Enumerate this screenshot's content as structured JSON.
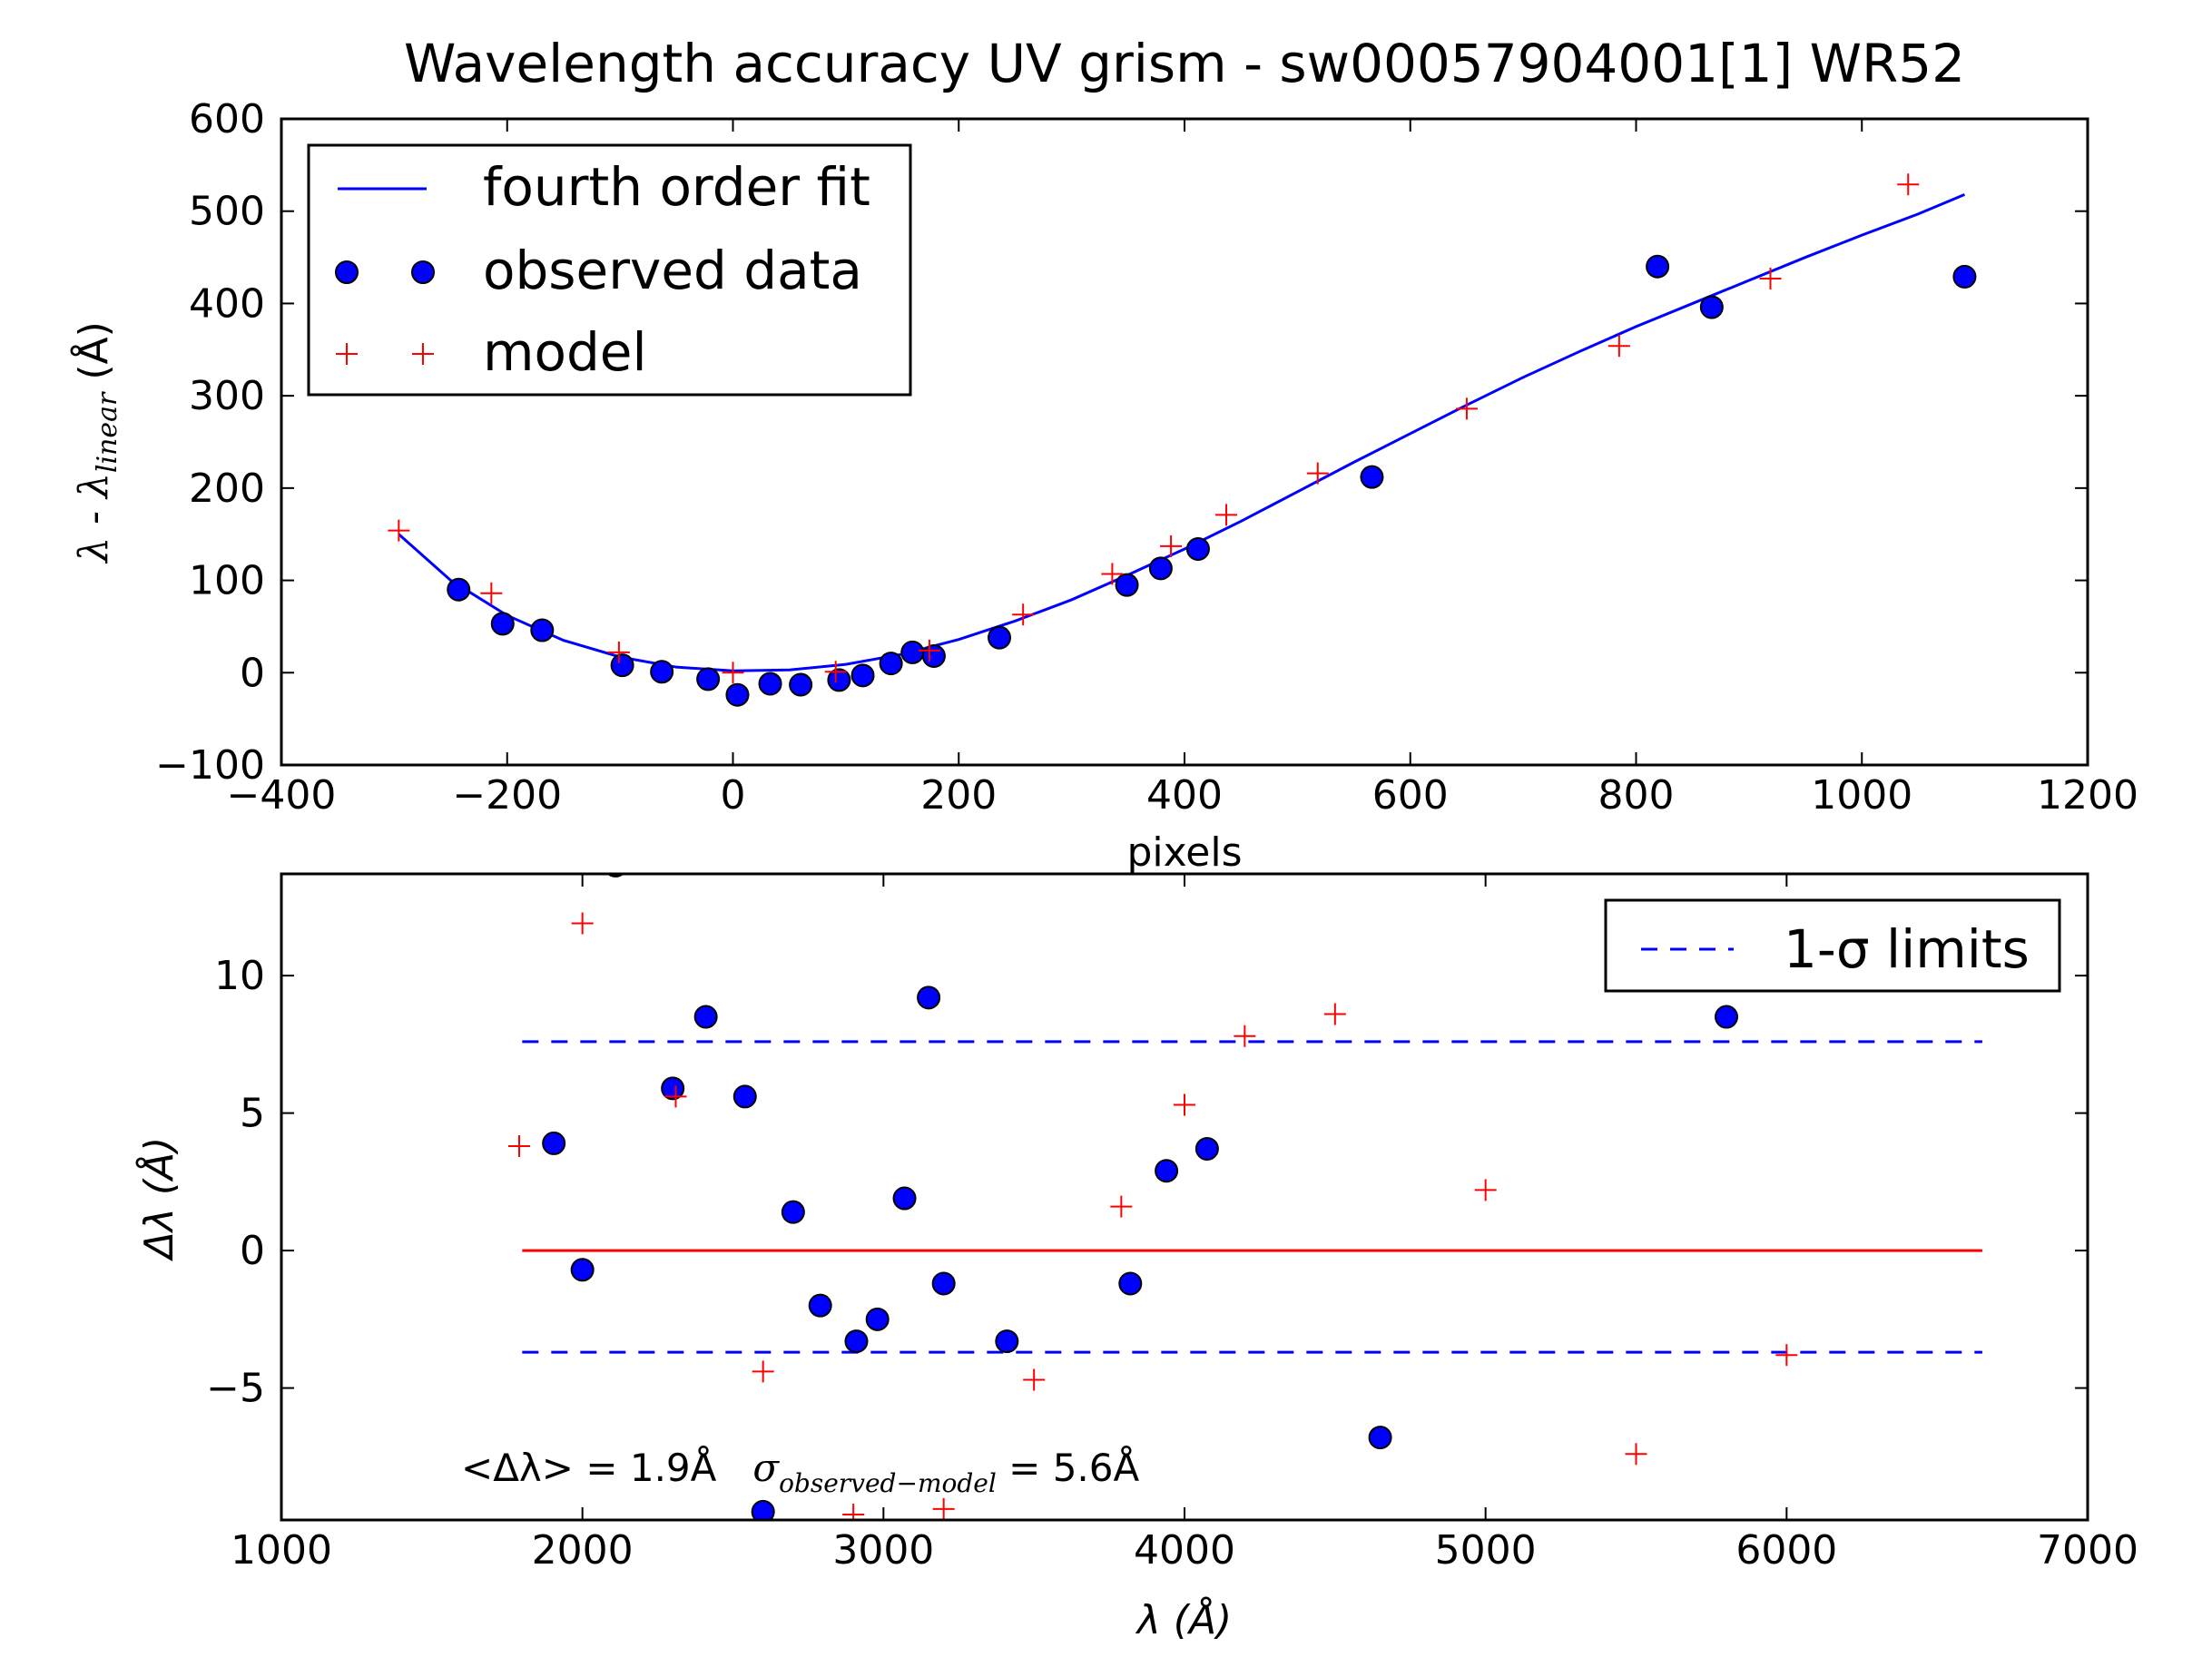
{
  "chart_data": [
    {
      "type": "scatter",
      "title": "Wavelength accuracy UV grism - sw00057904001[1] WR52",
      "xlabel": "pixels",
      "ylabel": {
        "prefix": "λ - λ",
        "subscript": "linear",
        "suffix": "  (Å)"
      },
      "xlim": [
        -400,
        1200
      ],
      "ylim": [
        -100,
        600
      ],
      "xticks": [
        -400,
        -200,
        0,
        200,
        400,
        600,
        800,
        1000,
        1200
      ],
      "yticks": [
        -100,
        0,
        100,
        200,
        300,
        400,
        500,
        600
      ],
      "xtick_labels": [
        "−400",
        "−200",
        "0",
        "200",
        "400",
        "600",
        "800",
        "1000",
        "1200"
      ],
      "ytick_labels": [
        "−100",
        "0",
        "100",
        "200",
        "300",
        "400",
        "500",
        "600"
      ],
      "grid": false,
      "legend_position": "top-left",
      "series": [
        {
          "name": "fourth order fit",
          "kind": "line",
          "color": "#0000ff",
          "x": [
            -296,
            -250,
            -200,
            -150,
            -100,
            -50,
            0,
            50,
            100,
            150,
            200,
            250,
            300,
            350,
            400,
            450,
            500,
            550,
            600,
            650,
            700,
            750,
            800,
            850,
            900,
            950,
            1000,
            1050,
            1091
          ],
          "y": [
            150,
            100,
            62,
            35,
            17,
            6,
            2,
            3,
            9,
            20,
            36,
            56,
            79,
            106,
            134,
            164,
            196,
            228,
            259,
            290,
            320,
            348,
            375,
            400,
            425,
            450,
            474,
            497,
            518
          ]
        },
        {
          "name": "observed data",
          "kind": "points",
          "marker": "circle",
          "color": "#0000ff",
          "x": [
            -243,
            -204,
            -169,
            -98,
            -63,
            -22,
            4,
            33,
            60,
            94,
            115,
            140,
            159,
            178,
            236,
            349,
            379,
            412,
            566,
            819,
            867,
            1091
          ],
          "y": [
            90,
            53,
            46,
            8,
            1,
            -7,
            -24,
            -12,
            -13,
            -8,
            -3,
            10,
            22,
            18,
            38,
            95,
            113,
            134,
            212,
            440,
            396,
            429
          ]
        },
        {
          "name": "model",
          "kind": "points",
          "marker": "plus",
          "color": "#ff0000",
          "x": [
            -296,
            -214,
            -101,
            0,
            91,
            174,
            257,
            336,
            388,
            437,
            518,
            650,
            785,
            919,
            1041
          ],
          "y": [
            154,
            86,
            22,
            0,
            1,
            24,
            63,
            107,
            137,
            171,
            216,
            286,
            354,
            427,
            529
          ]
        }
      ]
    },
    {
      "type": "scatter",
      "xlabel": "λ (Å)",
      "ylabel": "Δλ (Å)",
      "xlim": [
        1000,
        7000
      ],
      "ylim": [
        -9.8,
        13.7
      ],
      "xticks": [
        1000,
        2000,
        3000,
        4000,
        5000,
        6000,
        7000
      ],
      "yticks": [
        -5,
        0,
        5,
        10
      ],
      "xtick_labels": [
        "1000",
        "2000",
        "3000",
        "4000",
        "5000",
        "6000",
        "7000"
      ],
      "ytick_labels": [
        "−5",
        "0",
        "5",
        "10"
      ],
      "grid": false,
      "legend_position": "top-right",
      "series": [
        {
          "name": "1-σ limits",
          "kind": "hline-dashed",
          "color": "#0000ff",
          "x": [
            1800,
            6650
          ],
          "y_values": [
            7.6,
            -3.7
          ]
        },
        {
          "kind": "hline",
          "color": "#ff0000",
          "x": [
            1800,
            6650
          ],
          "y_values": [
            0
          ]
        },
        {
          "kind": "points",
          "marker": "circle",
          "color": "#0000ff",
          "x": [
            1905,
            2000,
            2110,
            2300,
            2410,
            2540,
            2600,
            2700,
            2790,
            2910,
            2980,
            3070,
            3150,
            3200,
            3410,
            3820,
            3940,
            4075,
            4650,
            5800
          ],
          "y": [
            3.9,
            -0.7,
            14.0,
            5.9,
            8.5,
            5.6,
            -9.5,
            1.4,
            -2.0,
            -3.3,
            -2.5,
            1.9,
            9.2,
            -1.2,
            -3.3,
            -1.2,
            2.9,
            3.7,
            -6.8,
            8.5
          ]
        },
        {
          "kind": "points",
          "marker": "plus",
          "color": "#ff0000",
          "x": [
            1790,
            2000,
            2310,
            2600,
            2900,
            3200,
            3500,
            3790,
            4000,
            4200,
            4500,
            5000,
            5500,
            6000
          ],
          "y": [
            3.8,
            11.9,
            5.6,
            -4.4,
            -9.6,
            -9.4,
            -4.7,
            1.6,
            5.3,
            7.8,
            8.6,
            2.2,
            -7.4,
            -3.8
          ]
        }
      ],
      "annotation": {
        "mean_text": "<Δλ> = 1.9Å",
        "sigma_symbol": "σ",
        "sigma_subscript": "observed−model",
        "sigma_value": " = 5.6Å"
      }
    }
  ]
}
